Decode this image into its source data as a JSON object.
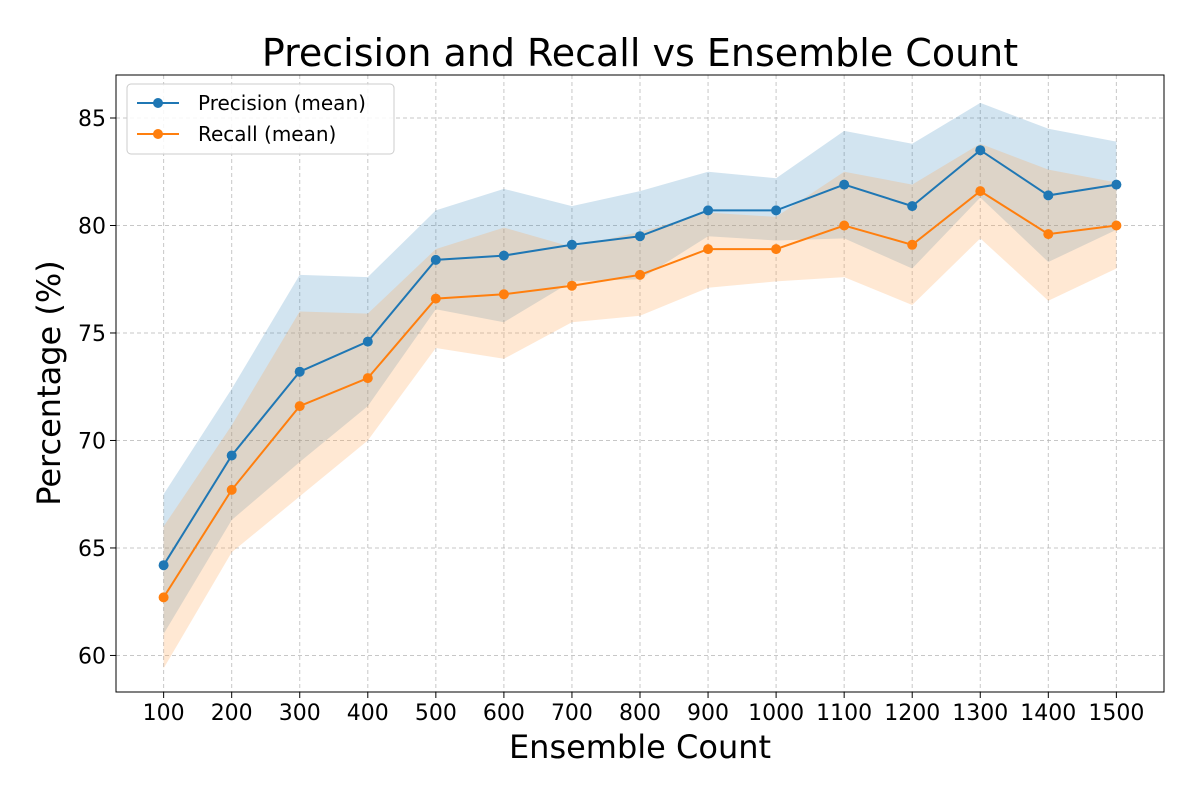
{
  "chart_data": {
    "type": "line",
    "title": "Precision and Recall vs Ensemble Count",
    "xlabel": "Ensemble Count",
    "ylabel": "Percentage (%)",
    "x": [
      100,
      200,
      300,
      400,
      500,
      600,
      700,
      800,
      900,
      1000,
      1100,
      1200,
      1300,
      1400,
      1500
    ],
    "xlim": [
      30,
      1570
    ],
    "ylim": [
      58.3,
      87.0
    ],
    "yticks": [
      60,
      65,
      70,
      75,
      80,
      85
    ],
    "grid": true,
    "legend_position": "top-left",
    "series": [
      {
        "name": "Precision (mean)",
        "color": "#1f77b4",
        "band_color": "#1f77b4",
        "values": [
          64.2,
          69.3,
          73.2,
          74.6,
          78.4,
          78.6,
          79.1,
          79.5,
          80.7,
          80.7,
          81.9,
          80.9,
          83.5,
          81.4,
          81.9
        ],
        "band_lower": [
          61.0,
          66.3,
          69.0,
          71.6,
          76.1,
          75.5,
          77.4,
          77.5,
          79.5,
          79.3,
          79.4,
          78.0,
          81.3,
          78.3,
          79.8
        ],
        "band_upper": [
          67.5,
          72.4,
          77.7,
          77.6,
          80.7,
          81.7,
          80.9,
          81.6,
          82.5,
          82.2,
          84.4,
          83.8,
          85.7,
          84.5,
          83.9
        ]
      },
      {
        "name": "Recall (mean)",
        "color": "#ff7f0e",
        "band_color": "#ffa54f",
        "values": [
          62.7,
          67.7,
          71.6,
          72.9,
          76.6,
          76.8,
          77.2,
          77.7,
          78.9,
          78.9,
          80.0,
          79.1,
          81.6,
          79.6,
          80.0
        ],
        "band_lower": [
          59.4,
          64.8,
          67.4,
          70.0,
          74.3,
          73.8,
          75.5,
          75.8,
          77.1,
          77.4,
          77.6,
          76.3,
          79.4,
          76.5,
          78.0
        ],
        "band_upper": [
          66.0,
          70.7,
          76.0,
          75.9,
          78.9,
          79.9,
          79.0,
          79.7,
          80.6,
          80.4,
          82.5,
          81.9,
          83.8,
          82.6,
          82.0
        ]
      }
    ]
  }
}
